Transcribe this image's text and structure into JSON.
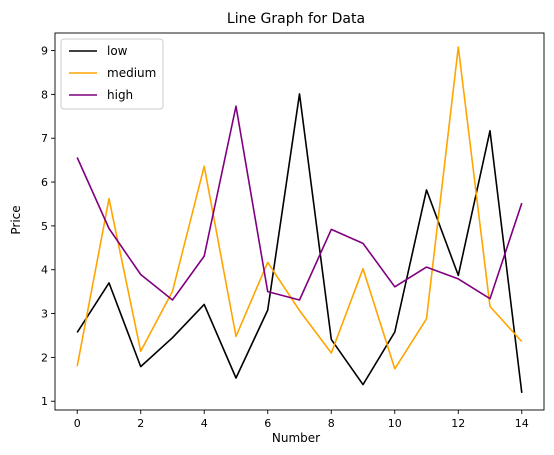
{
  "chart_data": {
    "type": "line",
    "title": "Line Graph for Data",
    "xlabel": "Number",
    "ylabel": "Price",
    "x": [
      0,
      1,
      2,
      3,
      4,
      5,
      6,
      7,
      8,
      9,
      10,
      11,
      12,
      13,
      14
    ],
    "xlim": [
      -0.7,
      14.7
    ],
    "ylim": [
      0.8,
      9.4
    ],
    "xticks": [
      0,
      2,
      4,
      6,
      8,
      10,
      12,
      14
    ],
    "yticks": [
      1,
      2,
      3,
      4,
      5,
      6,
      7,
      8,
      9
    ],
    "grid": false,
    "legend": "upper-left",
    "series": [
      {
        "name": "low",
        "color": "#000000",
        "values": [
          2.57,
          3.7,
          1.79,
          2.45,
          3.21,
          1.53,
          3.08,
          8.01,
          2.41,
          1.38,
          2.58,
          5.82,
          3.87,
          7.17,
          1.19
        ]
      },
      {
        "name": "medium",
        "color": "#ffa500",
        "values": [
          1.8,
          5.62,
          2.14,
          3.51,
          6.36,
          2.48,
          4.17,
          3.07,
          2.1,
          4.02,
          1.74,
          2.88,
          9.08,
          3.16,
          2.36
        ]
      },
      {
        "name": "high",
        "color": "#800080",
        "values": [
          6.56,
          4.94,
          3.89,
          3.31,
          4.31,
          7.73,
          3.5,
          3.31,
          4.92,
          4.6,
          3.61,
          4.06,
          3.79,
          3.34,
          5.52
        ]
      }
    ]
  }
}
